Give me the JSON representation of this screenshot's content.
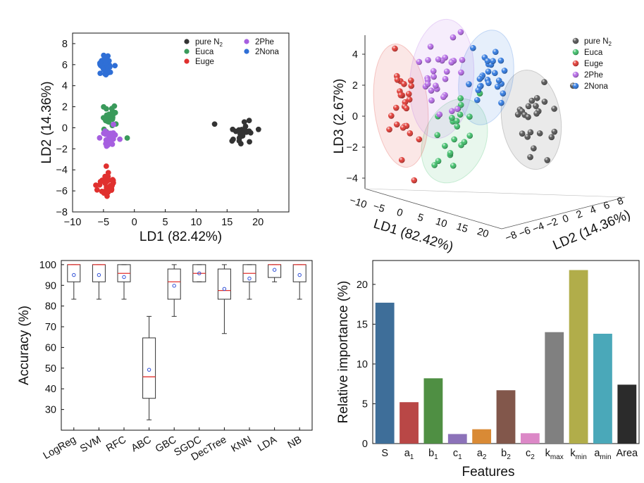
{
  "chart_data": [
    {
      "type": "scatter",
      "panel": "top-left",
      "xlabel": "LD1 (82.42%)",
      "ylabel": "LD2 (14.36%)",
      "xlim": [
        -10,
        25
      ],
      "ylim": [
        -8,
        9
      ],
      "xticks": [
        -10,
        -5,
        0,
        5,
        10,
        15,
        20
      ],
      "yticks": [
        -8,
        -6,
        -4,
        -2,
        0,
        2,
        4,
        6,
        8
      ],
      "legend": {
        "placement": "top-right"
      },
      "series": [
        {
          "name": "pure N",
          "name_sub": "2",
          "color": "#333333",
          "cx": 17.5,
          "cy": -0.4,
          "sx": 1.3,
          "sy": 0.6,
          "n": 26
        },
        {
          "name": "Euca",
          "color": "#3a9a5b",
          "cx": -4.0,
          "cy": 1.0,
          "sx": 0.9,
          "sy": 0.95,
          "n": 26
        },
        {
          "name": "Euge",
          "color": "#e0302e",
          "cx": -4.6,
          "cy": -5.4,
          "sx": 0.9,
          "sy": 0.65,
          "n": 32
        },
        {
          "name": "2Phe",
          "color": "#a65fe0",
          "cx": -4.1,
          "cy": -1.0,
          "sx": 0.8,
          "sy": 0.6,
          "n": 30
        },
        {
          "name": "2Nona",
          "color": "#2f6fd6",
          "cx": -4.6,
          "cy": 5.9,
          "sx": 0.8,
          "sy": 0.7,
          "n": 32
        }
      ]
    },
    {
      "type": "scatter",
      "panel": "top-right",
      "xlabel": "LD1 (82.42%)",
      "ylabel": "LD3 (2.67%)",
      "zlabel": "LD2 (14.36%)",
      "xticks": [
        -10,
        -5,
        0,
        5,
        10,
        15,
        20
      ],
      "yticks": [
        -4,
        -2,
        0,
        2,
        4
      ],
      "zticks": [
        -8,
        -6,
        -4,
        -2,
        0,
        2,
        4,
        6,
        8
      ],
      "legend": {
        "placement": "top-right"
      },
      "series": [
        {
          "name": "pure N",
          "name_sub": "2",
          "color": "#555555",
          "n": 24
        },
        {
          "name": "Euca",
          "color": "#3fbe6a",
          "n": 22
        },
        {
          "name": "Euge",
          "color": "#e03a34",
          "n": 26
        },
        {
          "name": "2Phe",
          "color": "#b56ae6",
          "n": 30
        },
        {
          "name": "2Nona",
          "color": "#2f79e0",
          "n": 26
        }
      ]
    },
    {
      "type": "box",
      "panel": "bottom-left",
      "ylabel": "Accuracy (%)",
      "ylim": [
        20,
        102
      ],
      "yticks": [
        30,
        40,
        50,
        60,
        70,
        80,
        90,
        100
      ],
      "categories": [
        "LogReg",
        "SVM",
        "RFC",
        "ABC",
        "GBC",
        "SGDC",
        "DecTree",
        "KNN",
        "LDA",
        "NB"
      ],
      "boxes": [
        {
          "min": 83.3,
          "q1": 91.7,
          "median": 100,
          "q3": 100,
          "max": 100,
          "mean": 95.0
        },
        {
          "min": 83.3,
          "q1": 91.7,
          "median": 100,
          "q3": 100,
          "max": 100,
          "mean": 95.0
        },
        {
          "min": 83.3,
          "q1": 91.7,
          "median": 95.8,
          "q3": 100,
          "max": 100,
          "mean": 94.0
        },
        {
          "min": 25.0,
          "q1": 35.4,
          "median": 45.8,
          "q3": 64.6,
          "max": 75.0,
          "mean": 49.2
        },
        {
          "min": 75.0,
          "q1": 83.3,
          "median": 91.7,
          "q3": 97.9,
          "max": 100,
          "mean": 89.8
        },
        {
          "min": 91.7,
          "q1": 91.7,
          "median": 95.8,
          "q3": 100,
          "max": 100,
          "mean": 95.8
        },
        {
          "min": 66.7,
          "q1": 83.3,
          "median": 87.5,
          "q3": 97.9,
          "max": 100,
          "mean": 88.3
        },
        {
          "min": 83.3,
          "q1": 91.7,
          "median": 95.8,
          "q3": 100,
          "max": 100,
          "mean": 93.3
        },
        {
          "min": 91.7,
          "q1": 93.8,
          "median": 100,
          "q3": 100,
          "max": 100,
          "mean": 97.5
        },
        {
          "min": 83.3,
          "q1": 91.7,
          "median": 100,
          "q3": 100,
          "max": 100,
          "mean": 95.0
        }
      ]
    },
    {
      "type": "bar",
      "panel": "bottom-right",
      "xlabel": "Features",
      "ylabel": "Relative importance (%)",
      "ylim": [
        0,
        23
      ],
      "yticks": [
        0,
        5,
        10,
        15,
        20
      ],
      "categories": [
        {
          "base": "S",
          "sub": ""
        },
        {
          "base": "a",
          "sub": "1"
        },
        {
          "base": "b",
          "sub": "1"
        },
        {
          "base": "c",
          "sub": "1"
        },
        {
          "base": "a",
          "sub": "2"
        },
        {
          "base": "b",
          "sub": "2"
        },
        {
          "base": "c",
          "sub": "2"
        },
        {
          "base": "k",
          "sub": "max"
        },
        {
          "base": "k",
          "sub": "min"
        },
        {
          "base": "a",
          "sub": "min"
        },
        {
          "base": "Area",
          "sub": ""
        }
      ],
      "values": [
        17.7,
        5.2,
        8.2,
        1.2,
        1.8,
        6.7,
        1.3,
        14.0,
        21.8,
        13.8,
        7.4
      ],
      "colors": [
        "#3e6e99",
        "#b94746",
        "#4f8f43",
        "#8c72b9",
        "#d98a35",
        "#82574b",
        "#dc88c7",
        "#808080",
        "#b1ad4a",
        "#4aa8b9",
        "#2b2b2b"
      ]
    }
  ]
}
